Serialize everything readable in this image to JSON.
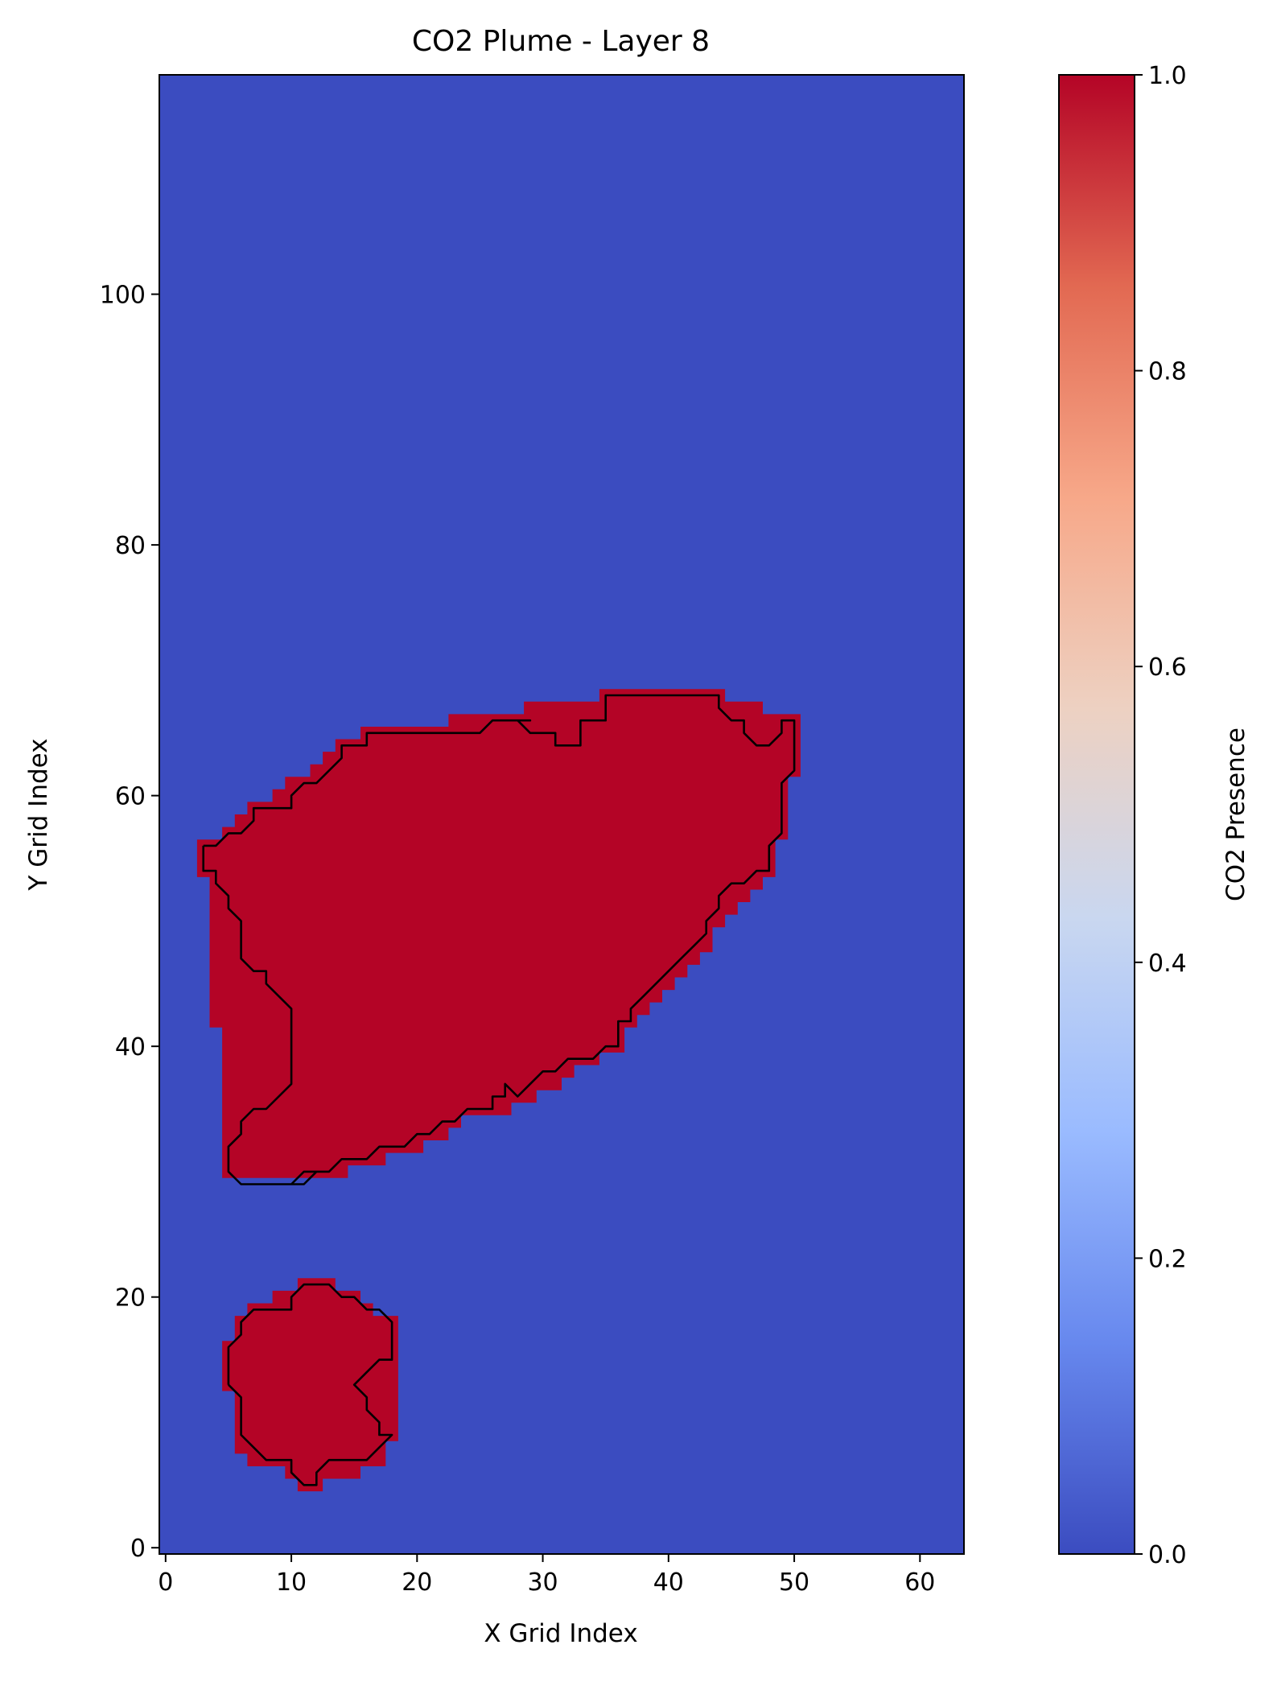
{
  "chart_data": {
    "type": "heatmap",
    "title": "CO2 Plume - Layer 8",
    "xlabel": "X Grid Index",
    "ylabel": "Y Grid Index",
    "xlim": [
      -0.5,
      63.5
    ],
    "ylim": [
      -0.5,
      117.5
    ],
    "xticks": [
      0,
      10,
      20,
      30,
      40,
      50,
      60
    ],
    "yticks": [
      0,
      20,
      40,
      60,
      80,
      100
    ],
    "grid": false,
    "colormap": "coolwarm",
    "background_value": 0,
    "plume_value": 1,
    "colorbar": {
      "label": "CO2 Presence",
      "range": [
        0.0,
        1.0
      ],
      "ticks": [
        "0.0",
        "0.2",
        "0.4",
        "0.6",
        "0.8",
        "1.0"
      ],
      "tick_values": [
        0.0,
        0.2,
        0.4,
        0.6,
        0.8,
        1.0
      ],
      "colors": [
        "#3b4cc0",
        "#6788ee",
        "#9abbff",
        "#c9d7f0",
        "#edd1c2",
        "#f7a889",
        "#e26952",
        "#b40426"
      ]
    },
    "colors": {
      "background": "#3b4cc0",
      "plume": "#b40426",
      "contour": "#000000"
    },
    "plume_regions": [
      {
        "name": "main",
        "outline_cells": [
          [
            2.5,
            53.5
          ],
          [
            3.5,
            53.5
          ],
          [
            3.5,
            41.5
          ],
          [
            4.5,
            41.5
          ],
          [
            4.5,
            29.5
          ],
          [
            14.5,
            29.5
          ],
          [
            14.5,
            30.5
          ],
          [
            17.5,
            30.5
          ],
          [
            17.5,
            31.5
          ],
          [
            20.5,
            31.5
          ],
          [
            20.5,
            32.5
          ],
          [
            22.5,
            32.5
          ],
          [
            22.5,
            33.5
          ],
          [
            23.5,
            33.5
          ],
          [
            23.5,
            34.5
          ],
          [
            27.5,
            34.5
          ],
          [
            27.5,
            35.5
          ],
          [
            29.5,
            35.5
          ],
          [
            29.5,
            36.5
          ],
          [
            31.5,
            36.5
          ],
          [
            31.5,
            37.5
          ],
          [
            32.5,
            37.5
          ],
          [
            32.5,
            38.5
          ],
          [
            34.5,
            38.5
          ],
          [
            34.5,
            39.5
          ],
          [
            36.5,
            39.5
          ],
          [
            36.5,
            41.5
          ],
          [
            37.5,
            41.5
          ],
          [
            37.5,
            42.5
          ],
          [
            38.5,
            42.5
          ],
          [
            38.5,
            43.5
          ],
          [
            39.5,
            43.5
          ],
          [
            39.5,
            44.5
          ],
          [
            40.5,
            44.5
          ],
          [
            40.5,
            45.5
          ],
          [
            41.5,
            45.5
          ],
          [
            41.5,
            46.5
          ],
          [
            42.5,
            46.5
          ],
          [
            42.5,
            47.5
          ],
          [
            43.5,
            47.5
          ],
          [
            43.5,
            49.5
          ],
          [
            44.5,
            49.5
          ],
          [
            44.5,
            50.5
          ],
          [
            45.5,
            50.5
          ],
          [
            45.5,
            51.5
          ],
          [
            46.5,
            51.5
          ],
          [
            46.5,
            52.5
          ],
          [
            47.5,
            52.5
          ],
          [
            47.5,
            53.5
          ],
          [
            48.5,
            53.5
          ],
          [
            48.5,
            56.5
          ],
          [
            49.5,
            56.5
          ],
          [
            49.5,
            61.5
          ],
          [
            50.5,
            61.5
          ],
          [
            50.5,
            66.5
          ],
          [
            47.5,
            66.5
          ],
          [
            47.5,
            67.5
          ],
          [
            44.5,
            67.5
          ],
          [
            44.5,
            68.5
          ],
          [
            34.5,
            68.5
          ],
          [
            34.5,
            67.5
          ],
          [
            28.5,
            67.5
          ],
          [
            28.5,
            66.5
          ],
          [
            22.5,
            66.5
          ],
          [
            22.5,
            65.5
          ],
          [
            15.5,
            65.5
          ],
          [
            15.5,
            64.5
          ],
          [
            13.5,
            64.5
          ],
          [
            13.5,
            63.5
          ],
          [
            12.5,
            63.5
          ],
          [
            12.5,
            62.5
          ],
          [
            11.5,
            62.5
          ],
          [
            11.5,
            61.5
          ],
          [
            9.5,
            61.5
          ],
          [
            9.5,
            60.5
          ],
          [
            8.5,
            60.5
          ],
          [
            8.5,
            59.5
          ],
          [
            6.5,
            59.5
          ],
          [
            6.5,
            58.5
          ],
          [
            5.5,
            58.5
          ],
          [
            5.5,
            57.5
          ],
          [
            4.5,
            57.5
          ],
          [
            4.5,
            56.5
          ],
          [
            2.5,
            56.5
          ]
        ],
        "contour": [
          [
            3,
            56
          ],
          [
            4,
            56
          ],
          [
            5,
            57
          ],
          [
            6,
            57
          ],
          [
            7,
            58
          ],
          [
            7,
            59
          ],
          [
            10,
            59
          ],
          [
            10,
            60
          ],
          [
            11,
            61
          ],
          [
            12,
            61
          ],
          [
            14,
            63
          ],
          [
            14,
            64
          ],
          [
            16,
            64
          ],
          [
            16,
            65
          ],
          [
            25,
            65
          ],
          [
            26,
            66
          ],
          [
            28,
            66
          ],
          [
            29,
            66
          ],
          [
            28,
            66
          ],
          [
            29,
            65
          ],
          [
            31,
            65
          ],
          [
            31,
            64
          ],
          [
            33,
            64
          ],
          [
            33,
            66
          ],
          [
            35,
            66
          ],
          [
            35,
            68
          ],
          [
            44,
            68
          ],
          [
            44,
            67
          ],
          [
            45,
            66
          ],
          [
            46,
            66
          ],
          [
            46,
            65
          ],
          [
            47,
            64
          ],
          [
            48,
            64
          ],
          [
            49,
            65
          ],
          [
            49,
            66
          ],
          [
            50,
            66
          ],
          [
            50,
            62
          ],
          [
            49,
            61
          ],
          [
            49,
            57
          ],
          [
            48,
            56
          ],
          [
            48,
            54
          ],
          [
            47,
            54
          ],
          [
            46,
            53
          ],
          [
            45,
            53
          ],
          [
            44,
            52
          ],
          [
            44,
            51
          ],
          [
            43,
            50
          ],
          [
            43,
            49
          ],
          [
            42,
            48
          ],
          [
            41,
            47
          ],
          [
            40,
            46
          ],
          [
            39,
            45
          ],
          [
            38,
            44
          ],
          [
            37,
            43
          ],
          [
            37,
            42
          ],
          [
            36,
            42
          ],
          [
            36,
            40
          ],
          [
            35,
            40
          ],
          [
            34,
            39
          ],
          [
            32,
            39
          ],
          [
            31,
            38
          ],
          [
            30,
            38
          ],
          [
            29,
            37
          ],
          [
            28,
            36
          ],
          [
            27,
            37
          ],
          [
            27,
            36
          ],
          [
            26,
            36
          ],
          [
            26,
            35
          ],
          [
            24,
            35
          ],
          [
            23,
            34
          ],
          [
            22,
            34
          ],
          [
            21,
            33
          ],
          [
            20,
            33
          ],
          [
            19,
            32
          ],
          [
            17,
            32
          ],
          [
            16,
            31
          ],
          [
            14,
            31
          ],
          [
            13,
            30
          ],
          [
            12,
            30
          ],
          [
            11,
            29
          ],
          [
            10,
            29
          ],
          [
            11,
            30
          ],
          [
            12,
            30
          ],
          [
            11,
            29
          ],
          [
            6,
            29
          ],
          [
            5,
            30
          ],
          [
            5,
            32
          ],
          [
            6,
            33
          ],
          [
            6,
            34
          ],
          [
            7,
            35
          ],
          [
            8,
            35
          ],
          [
            10,
            37
          ],
          [
            10,
            43
          ],
          [
            8,
            45
          ],
          [
            8,
            46
          ],
          [
            7,
            46
          ],
          [
            6,
            47
          ],
          [
            6,
            50
          ],
          [
            5,
            51
          ],
          [
            5,
            52
          ],
          [
            4,
            53
          ],
          [
            4,
            54
          ],
          [
            3,
            54
          ],
          [
            3,
            56
          ]
        ]
      },
      {
        "name": "lower",
        "outline_cells": [
          [
            4.5,
            12.5
          ],
          [
            4.5,
            16.5
          ],
          [
            5.5,
            16.5
          ],
          [
            5.5,
            18.5
          ],
          [
            6.5,
            18.5
          ],
          [
            6.5,
            19.5
          ],
          [
            8.5,
            19.5
          ],
          [
            8.5,
            20.5
          ],
          [
            10.5,
            20.5
          ],
          [
            10.5,
            21.5
          ],
          [
            13.5,
            21.5
          ],
          [
            13.5,
            20.5
          ],
          [
            15.5,
            20.5
          ],
          [
            15.5,
            19.5
          ],
          [
            16.5,
            19.5
          ],
          [
            16.5,
            18.5
          ],
          [
            18.5,
            18.5
          ],
          [
            18.5,
            8.5
          ],
          [
            17.5,
            8.5
          ],
          [
            17.5,
            6.5
          ],
          [
            15.5,
            6.5
          ],
          [
            15.5,
            5.5
          ],
          [
            12.5,
            5.5
          ],
          [
            12.5,
            4.5
          ],
          [
            10.5,
            4.5
          ],
          [
            10.5,
            5.5
          ],
          [
            9.5,
            5.5
          ],
          [
            9.5,
            6.5
          ],
          [
            6.5,
            6.5
          ],
          [
            6.5,
            7.5
          ],
          [
            5.5,
            7.5
          ],
          [
            5.5,
            12.5
          ]
        ],
        "contour": [
          [
            5,
            13
          ],
          [
            5,
            16
          ],
          [
            6,
            17
          ],
          [
            6,
            18
          ],
          [
            7,
            19
          ],
          [
            10,
            19
          ],
          [
            10,
            20
          ],
          [
            11,
            21
          ],
          [
            13,
            21
          ],
          [
            14,
            20
          ],
          [
            15,
            20
          ],
          [
            16,
            19
          ],
          [
            17,
            19
          ],
          [
            18,
            18
          ],
          [
            18,
            15
          ],
          [
            17,
            15
          ],
          [
            16,
            14
          ],
          [
            15,
            13
          ],
          [
            16,
            12
          ],
          [
            16,
            11
          ],
          [
            17,
            10
          ],
          [
            17,
            9
          ],
          [
            18,
            9
          ],
          [
            17,
            8
          ],
          [
            16,
            7
          ],
          [
            13,
            7
          ],
          [
            12,
            6
          ],
          [
            12,
            5
          ],
          [
            11,
            5
          ],
          [
            10,
            6
          ],
          [
            10,
            7
          ],
          [
            8,
            7
          ],
          [
            7,
            8
          ],
          [
            6,
            9
          ],
          [
            6,
            12
          ],
          [
            5,
            13
          ]
        ]
      }
    ]
  }
}
